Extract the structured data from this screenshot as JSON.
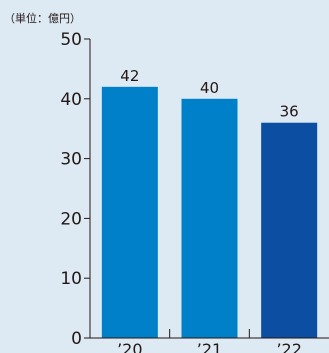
{
  "chart_data": {
    "type": "bar",
    "unit_label": "（単位：億円）",
    "title": "",
    "xlabel": "",
    "ylabel": "",
    "categories": [
      "’20",
      "’21",
      "’22"
    ],
    "values": [
      42,
      40,
      36
    ],
    "data_labels": [
      "42",
      "40",
      "36"
    ],
    "bar_colors": [
      "#0080c8",
      "#0080c8",
      "#0b4ea2"
    ],
    "ylim": [
      0,
      50
    ],
    "yticks": [
      0,
      10,
      20,
      30,
      40,
      50
    ],
    "grid": false,
    "legend": "none"
  }
}
